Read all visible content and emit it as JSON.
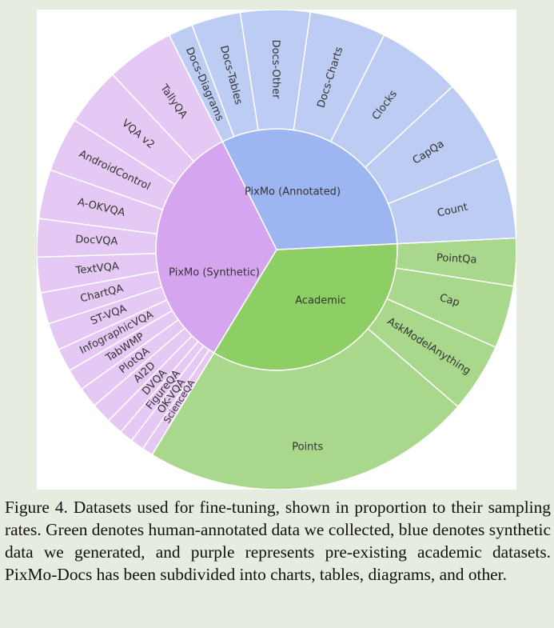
{
  "figure": {
    "caption": "Figure 4.  Datasets used for fine-tuning, shown in proportion to their sampling rates. Green denotes human-annotated data we collected, blue denotes synthetic data we generated, and purple represents pre-existing academic datasets. PixMo-Docs has been subdivided into charts, tables, diagrams, and other."
  },
  "chart_data": {
    "type": "sunburst",
    "unit": "share of sampling rate (estimated from arc angles)",
    "groups": [
      {
        "name": "PixMo (Annotated)",
        "color": "#8dcf64",
        "child_color": "#a9d88c",
        "children": [
          {
            "name": "PointQa",
            "value": 3.5
          },
          {
            "name": "Cap",
            "value": 4.6
          },
          {
            "name": "AskModelAnything",
            "value": 5.1
          },
          {
            "name": "Points",
            "value": 24.3
          }
        ]
      },
      {
        "name": "Academic",
        "color": "#d5a6ef",
        "child_color": "#e5c8f3",
        "children": [
          {
            "name": "ScienceQA",
            "value": 0.8
          },
          {
            "name": "OK-VQA",
            "value": 1.0
          },
          {
            "name": "FigureQA",
            "value": 1.0
          },
          {
            "name": "DVQA",
            "value": 1.2
          },
          {
            "name": "AI2D",
            "value": 1.5
          },
          {
            "name": "PlotQA",
            "value": 1.5
          },
          {
            "name": "TabWMP",
            "value": 1.6
          },
          {
            "name": "InfographicVQA",
            "value": 1.7
          },
          {
            "name": "ST-VQA",
            "value": 2.0
          },
          {
            "name": "ChartQA",
            "value": 2.3
          },
          {
            "name": "TextVQA",
            "value": 2.6
          },
          {
            "name": "DocVQA",
            "value": 2.8
          },
          {
            "name": "A-OKVQA",
            "value": 3.6
          },
          {
            "name": "AndroidControl",
            "value": 4.0
          },
          {
            "name": "VQA v2",
            "value": 4.3
          },
          {
            "name": "TallyQA",
            "value": 5.0
          }
        ]
      },
      {
        "name": "PixMo (Synthetic)",
        "color": "#9db5f1",
        "child_color": "#bcccf3",
        "children": [
          {
            "name": "Docs-Diagrams",
            "value": 1.8
          },
          {
            "name": "Docs-Tables",
            "value": 3.6
          },
          {
            "name": "Docs-Other",
            "value": 5.1
          },
          {
            "name": "Docs-Charts",
            "value": 5.6
          },
          {
            "name": "Clocks",
            "value": 6.2
          },
          {
            "name": "CapQa",
            "value": 6.2
          },
          {
            "name": "Count",
            "value": 5.9
          }
        ]
      }
    ]
  }
}
